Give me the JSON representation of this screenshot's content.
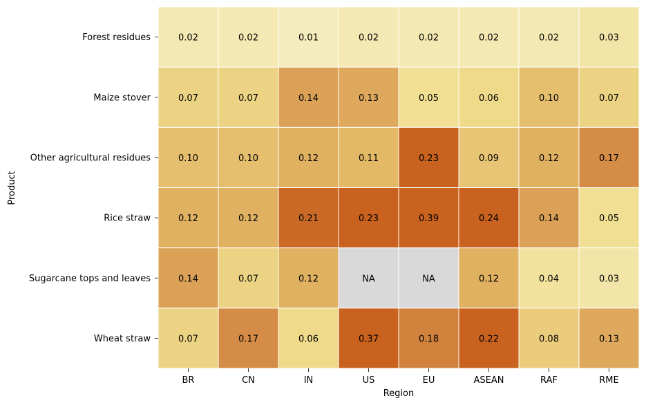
{
  "chart_data": {
    "type": "heatmap",
    "title": "",
    "xlabel": "Region",
    "ylabel": "Product",
    "x_categories": [
      "BR",
      "CN",
      "IN",
      "US",
      "EU",
      "ASEAN",
      "RAF",
      "RME"
    ],
    "y_categories": [
      "Forest residues",
      "Maize stover",
      "Other agricultural residues",
      "Rice straw",
      "Sugarcane tops and leaves",
      "Wheat straw"
    ],
    "values": [
      [
        0.02,
        0.02,
        0.01,
        0.02,
        0.02,
        0.02,
        0.02,
        0.03
      ],
      [
        0.07,
        0.07,
        0.14,
        0.13,
        0.05,
        0.06,
        0.1,
        0.07
      ],
      [
        0.1,
        0.1,
        0.12,
        0.11,
        0.23,
        0.09,
        0.12,
        0.17
      ],
      [
        0.12,
        0.12,
        0.21,
        0.23,
        0.39,
        0.24,
        0.14,
        0.05
      ],
      [
        0.14,
        0.07,
        0.12,
        null,
        null,
        0.12,
        0.04,
        0.03
      ],
      [
        0.07,
        0.17,
        0.06,
        0.37,
        0.18,
        0.22,
        0.08,
        0.13
      ]
    ],
    "missing_label": "NA",
    "color_scale": {
      "min": 0.0,
      "max": 0.22,
      "stops": [
        "#f6efc8",
        "#f0dd8e",
        "#e3b866",
        "#d5904a",
        "#c8621e"
      ],
      "missing_color": "#d9d9d9"
    },
    "colorbar": false,
    "cell_border_color": "#ffffff"
  }
}
